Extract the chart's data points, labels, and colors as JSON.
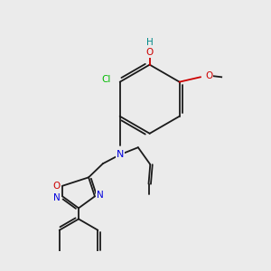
{
  "background_color": "#ebebeb",
  "bond_color": "#1a1a1a",
  "atom_colors": {
    "O": "#cc0000",
    "N": "#0000dd",
    "Cl": "#00bb00",
    "H_OH": "#008888",
    "C": "#1a1a1a"
  },
  "lw": 1.3
}
